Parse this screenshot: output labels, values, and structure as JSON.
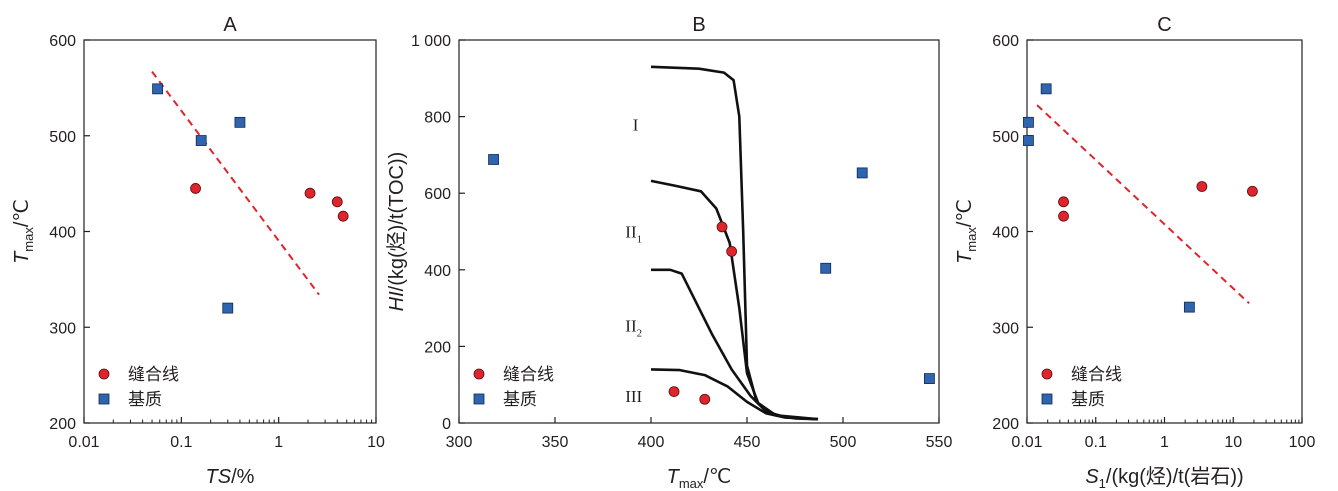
{
  "chart_data": [
    {
      "panel": "A",
      "type": "scatter",
      "title": "A",
      "xlabel": {
        "italic": "TS",
        "rest": "/%"
      },
      "ylabel": {
        "italic": "T",
        "sub": "max",
        "rest": "/℃"
      },
      "xscale": "log",
      "xlim": [
        0.01,
        10
      ],
      "ylim": [
        200,
        600
      ],
      "xticks": [
        "0.01",
        "0.1",
        "1",
        "10"
      ],
      "yticks": [
        "200",
        "300",
        "400",
        "500",
        "600"
      ],
      "legend": {
        "position": "bottom-left",
        "entries": [
          "缝合线",
          "基质"
        ]
      },
      "series": [
        {
          "name": "缝合线",
          "marker": "circle",
          "color": "#e0242b",
          "points": [
            [
              0.14,
              445
            ],
            [
              2.1,
              440
            ],
            [
              4.0,
              431
            ],
            [
              4.6,
              416
            ]
          ]
        },
        {
          "name": "基质",
          "marker": "square",
          "color": "#2f64ae",
          "points": [
            [
              0.057,
              549
            ],
            [
              0.16,
              495
            ],
            [
              0.4,
              514
            ],
            [
              0.3,
              320
            ]
          ]
        }
      ],
      "trendline": {
        "style": "dashed",
        "color": "#e0242b",
        "from": [
          0.05,
          567
        ],
        "to": [
          2.6,
          334
        ]
      }
    },
    {
      "panel": "B",
      "type": "scatter",
      "title": "B",
      "xlabel": {
        "italic": "T",
        "sub": "max",
        "rest": "/℃"
      },
      "ylabel": {
        "italic": "HI",
        "rest": "/(kg(烃)/t(TOC))"
      },
      "xscale": "linear",
      "xlim": [
        300,
        550
      ],
      "ylim": [
        0,
        1000
      ],
      "xticks": [
        "300",
        "350",
        "400",
        "450",
        "500",
        "550"
      ],
      "yticks": [
        "0",
        "200",
        "400",
        "600",
        "800",
        "1 000"
      ],
      "legend": {
        "position": "bottom-left",
        "entries": [
          "缝合线",
          "基质"
        ]
      },
      "series": [
        {
          "name": "缝合线",
          "marker": "circle",
          "color": "#e0242b",
          "points": [
            [
              437,
              512
            ],
            [
              442,
              448
            ],
            [
              412,
              82
            ],
            [
              428,
              62
            ]
          ]
        },
        {
          "name": "基质",
          "marker": "square",
          "color": "#2f64ae",
          "points": [
            [
              318,
              688
            ],
            [
              491,
              404
            ],
            [
              510,
              653
            ],
            [
              545,
              116
            ]
          ]
        }
      ],
      "kerogen_curves": [
        {
          "label": "I",
          "points": [
            [
              400,
              930
            ],
            [
              425,
              925
            ],
            [
              438,
              915
            ],
            [
              443,
              895
            ],
            [
              446,
              800
            ],
            [
              448,
              500
            ],
            [
              450,
              150
            ],
            [
              455,
              55
            ],
            [
              465,
              20
            ],
            [
              475,
              12
            ],
            [
              487,
              10
            ]
          ]
        },
        {
          "label": "II1",
          "points": [
            [
              400,
              632
            ],
            [
              412,
              620
            ],
            [
              426,
              605
            ],
            [
              434,
              560
            ],
            [
              441,
              470
            ],
            [
              446,
              300
            ],
            [
              450,
              130
            ],
            [
              456,
              50
            ],
            [
              465,
              20
            ],
            [
              487,
              10
            ]
          ]
        },
        {
          "label": "II2",
          "points": [
            [
              400,
              400
            ],
            [
              410,
              400
            ],
            [
              416,
              390
            ],
            [
              422,
              330
            ],
            [
              432,
              230
            ],
            [
              442,
              140
            ],
            [
              452,
              70
            ],
            [
              460,
              30
            ],
            [
              470,
              15
            ],
            [
              487,
              10
            ]
          ]
        },
        {
          "label": "III",
          "points": [
            [
              400,
              140
            ],
            [
              415,
              138
            ],
            [
              428,
              125
            ],
            [
              440,
              95
            ],
            [
              450,
              55
            ],
            [
              460,
              25
            ],
            [
              470,
              14
            ],
            [
              487,
              10
            ]
          ]
        }
      ],
      "curve_labels": [
        {
          "base": "I",
          "sub": "",
          "x": 392,
          "y": 780
        },
        {
          "base": "II",
          "sub": "1",
          "x": 391,
          "y": 500
        },
        {
          "base": "II",
          "sub": "2",
          "x": 391,
          "y": 255
        },
        {
          "base": "III",
          "sub": "",
          "x": 391,
          "y": 70
        }
      ]
    },
    {
      "panel": "C",
      "type": "scatter",
      "title": "C",
      "xlabel": {
        "italic": "S",
        "sub": "1",
        "rest": "/(kg(烃)/t(岩石))"
      },
      "ylabel": {
        "italic": "T",
        "sub": "max",
        "rest": "/℃"
      },
      "xscale": "log",
      "xlim": [
        0.01,
        100
      ],
      "ylim": [
        200,
        600
      ],
      "xticks": [
        "0.01",
        "0.1",
        "1",
        "10",
        "100"
      ],
      "yticks": [
        "200",
        "300",
        "400",
        "500",
        "600"
      ],
      "legend": {
        "position": "bottom-left",
        "entries": [
          "缝合线",
          "基质"
        ]
      },
      "series": [
        {
          "name": "缝合线",
          "marker": "circle",
          "color": "#e0242b",
          "points": [
            [
              0.034,
              431
            ],
            [
              0.034,
              416
            ],
            [
              3.5,
              447
            ],
            [
              19,
              442
            ]
          ]
        },
        {
          "name": "基质",
          "marker": "square",
          "color": "#2f64ae",
          "points": [
            [
              0.019,
              549
            ],
            [
              0.0105,
              514
            ],
            [
              0.0105,
              495
            ],
            [
              2.3,
              321
            ]
          ]
        }
      ],
      "trendline": {
        "style": "dashed",
        "color": "#e0242b",
        "from": [
          0.014,
          532
        ],
        "to": [
          17,
          325
        ]
      }
    }
  ]
}
